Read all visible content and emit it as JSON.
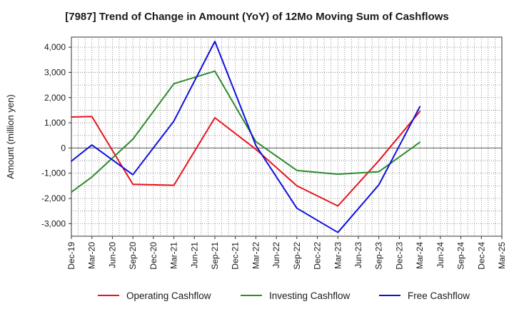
{
  "chart_data": {
    "type": "line",
    "title": "[7987]  Trend of Change in Amount (YoY) of 12Mo Moving Sum of Cashflows",
    "xlabel": "",
    "ylabel": "Amount (million yen)",
    "ylim": [
      -3500,
      4400
    ],
    "yticks": [
      4000,
      3000,
      2000,
      1000,
      0,
      -1000,
      -2000,
      -3000
    ],
    "ytick_labels": [
      "4,000",
      "3,000",
      "2,000",
      "1,000",
      "0",
      "-1,000",
      "-2,000",
      "-3,000"
    ],
    "categories": [
      "Dec-19",
      "Mar-20",
      "Jun-20",
      "Sep-20",
      "Dec-20",
      "Mar-21",
      "Jun-21",
      "Sep-21",
      "Dec-21",
      "Mar-22",
      "Jun-22",
      "Sep-22",
      "Dec-22",
      "Mar-23",
      "Jun-23",
      "Sep-23",
      "Dec-23",
      "Mar-24",
      "Jun-24",
      "Sep-24",
      "Dec-24",
      "Mar-25"
    ],
    "grid": true,
    "legend_position": "bottom",
    "series": [
      {
        "name": "Operating Cashflow",
        "color": "#e8141e",
        "values": [
          1230,
          1250,
          null,
          -1440,
          null,
          -1480,
          null,
          1200,
          null,
          -50,
          null,
          -1500,
          null,
          -2300,
          null,
          -500,
          null,
          1450,
          null,
          null,
          null,
          null
        ]
      },
      {
        "name": "Investing Cashflow",
        "color": "#2e8b2e",
        "values": [
          -1750,
          -1150,
          null,
          350,
          null,
          2550,
          null,
          3050,
          null,
          250,
          null,
          -890,
          null,
          -1040,
          null,
          -940,
          null,
          230,
          null,
          null,
          null,
          null
        ]
      },
      {
        "name": "Free Cashflow",
        "color": "#1010e0",
        "values": [
          -520,
          120,
          null,
          -1060,
          null,
          1070,
          null,
          4230,
          null,
          100,
          null,
          -2390,
          null,
          -3350,
          null,
          -1460,
          null,
          1640,
          null,
          null,
          null,
          null
        ]
      }
    ]
  }
}
